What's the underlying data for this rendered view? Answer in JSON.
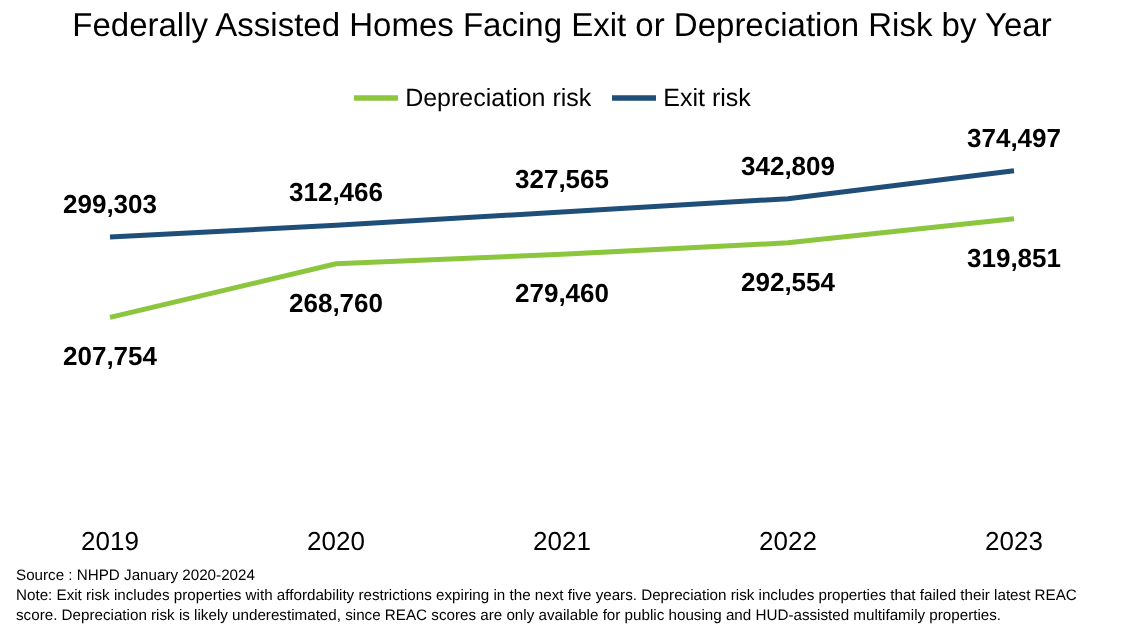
{
  "chart_data": {
    "type": "line",
    "title": "Federally Assisted Homes Facing Exit or Depreciation Risk by Year",
    "categories": [
      "2019",
      "2020",
      "2021",
      "2022",
      "2023"
    ],
    "series": [
      {
        "name": "Exit risk",
        "color": "#1f4e79",
        "values": [
          299303,
          312466,
          327565,
          342809,
          374497
        ],
        "value_labels": [
          "299,303",
          "312,466",
          "327,565",
          "342,809",
          "374,497"
        ]
      },
      {
        "name": "Depreciation risk",
        "color": "#8cc63f",
        "values": [
          207754,
          268760,
          279460,
          292554,
          319851
        ],
        "value_labels": [
          "207,754",
          "268,760",
          "279,460",
          "292,554",
          "319,851"
        ]
      }
    ],
    "legend": "top",
    "grid": false,
    "marker": "none",
    "annotations": [
      "Source : NHPD January 2020-2024",
      "Note: Exit risk includes properties with affordability restrictions expiring in the next five years. Depreciation risk includes properties that failed their latest REAC score. Depreciation risk is likely underestimated, since REAC scores are only available for public housing and HUD-assisted multifamily properties."
    ]
  }
}
